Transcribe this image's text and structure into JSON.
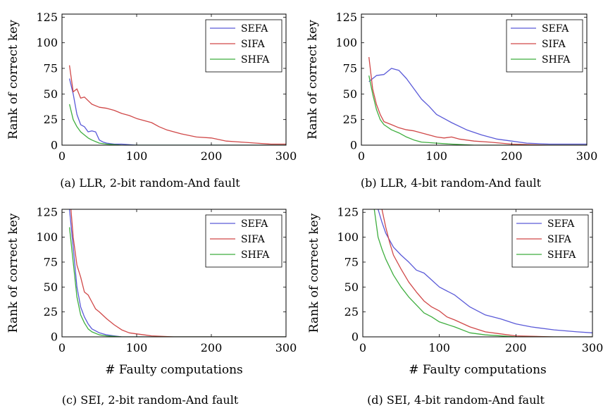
{
  "figure": {
    "colors": {
      "SEFA": "#5a5ad8",
      "SIFA": "#d04848",
      "SHFA": "#3fae3f"
    }
  },
  "chart_data": [
    {
      "type": "line",
      "caption": "(a) LLR, 2-bit random-And fault",
      "xlabel": "",
      "ylabel": "Rank of correct key",
      "xlim": [
        0,
        300
      ],
      "ylim": [
        0,
        128
      ],
      "xticks": [
        "0",
        "100",
        "200",
        "300"
      ],
      "yticks": [
        "0",
        "25",
        "50",
        "75",
        "100",
        "125"
      ],
      "legend": [
        "SEFA",
        "SIFA",
        "SHFA"
      ],
      "legend_position": "top-right",
      "series": [
        {
          "name": "SEFA",
          "x": [
            10,
            15,
            20,
            25,
            30,
            35,
            40,
            45,
            50,
            55,
            60,
            70,
            80,
            100,
            150,
            200,
            250,
            300
          ],
          "y": [
            65,
            50,
            30,
            20,
            18,
            13,
            14,
            13,
            5,
            3,
            2,
            1,
            1,
            0,
            0,
            0,
            0,
            0
          ]
        },
        {
          "name": "SIFA",
          "x": [
            10,
            15,
            20,
            25,
            30,
            40,
            50,
            60,
            70,
            80,
            90,
            100,
            110,
            120,
            130,
            140,
            160,
            180,
            200,
            220,
            240,
            260,
            280,
            300
          ],
          "y": [
            78,
            52,
            55,
            46,
            47,
            40,
            37,
            36,
            34,
            31,
            29,
            26,
            24,
            22,
            18,
            15,
            11,
            8,
            7,
            4,
            3,
            2,
            1,
            1
          ]
        },
        {
          "name": "SHFA",
          "x": [
            10,
            15,
            20,
            25,
            30,
            35,
            40,
            50,
            60,
            80,
            100,
            150,
            200,
            250,
            300
          ],
          "y": [
            40,
            25,
            18,
            13,
            10,
            7,
            5,
            2,
            1,
            0,
            0,
            0,
            0,
            0,
            0
          ]
        }
      ]
    },
    {
      "type": "line",
      "caption": "(b) LLR, 4-bit random-And fault",
      "xlabel": "",
      "ylabel": "Rank of correct key",
      "xlim": [
        0,
        300
      ],
      "ylim": [
        0,
        128
      ],
      "xticks": [
        "0",
        "100",
        "200",
        "300"
      ],
      "yticks": [
        "0",
        "25",
        "50",
        "75",
        "100",
        "125"
      ],
      "legend": [
        "SEFA",
        "SIFA",
        "SHFA"
      ],
      "legend_position": "top-right",
      "series": [
        {
          "name": "SEFA",
          "x": [
            10,
            20,
            30,
            40,
            50,
            60,
            70,
            80,
            90,
            100,
            120,
            140,
            160,
            180,
            200,
            220,
            250,
            300
          ],
          "y": [
            62,
            68,
            69,
            75,
            73,
            65,
            55,
            45,
            38,
            30,
            22,
            15,
            10,
            6,
            4,
            2,
            1,
            1
          ]
        },
        {
          "name": "SIFA",
          "x": [
            10,
            15,
            20,
            25,
            30,
            40,
            50,
            60,
            70,
            80,
            90,
            100,
            110,
            120,
            130,
            150,
            170,
            200,
            250,
            300
          ],
          "y": [
            86,
            55,
            40,
            30,
            23,
            20,
            17,
            15,
            14,
            12,
            10,
            8,
            7,
            8,
            6,
            4,
            3,
            1,
            0,
            0
          ]
        },
        {
          "name": "SHFA",
          "x": [
            10,
            15,
            20,
            25,
            30,
            40,
            50,
            60,
            70,
            80,
            100,
            120,
            150,
            200,
            250,
            300
          ],
          "y": [
            68,
            50,
            35,
            25,
            20,
            15,
            12,
            8,
            5,
            3,
            2,
            1,
            0,
            0,
            0,
            0
          ]
        }
      ]
    },
    {
      "type": "line",
      "caption": "(c) SEI, 2-bit random-And fault",
      "xlabel": "# Faulty computations",
      "ylabel": "Rank of correct key",
      "xlim": [
        0,
        300
      ],
      "ylim": [
        0,
        128
      ],
      "xticks": [
        "0",
        "100",
        "200",
        "300"
      ],
      "yticks": [
        "0",
        "25",
        "50",
        "75",
        "100",
        "125"
      ],
      "legend": [
        "SEFA",
        "SIFA",
        "SHFA"
      ],
      "legend_position": "top-right",
      "series": [
        {
          "name": "SEFA",
          "x": [
            10,
            15,
            20,
            25,
            30,
            35,
            40,
            50,
            60,
            70,
            80,
            100,
            150,
            200,
            300
          ],
          "y": [
            128,
            90,
            50,
            30,
            20,
            13,
            8,
            4,
            2,
            1,
            0,
            0,
            0,
            0,
            0
          ]
        },
        {
          "name": "SIFA",
          "x": [
            12,
            15,
            20,
            25,
            30,
            35,
            40,
            45,
            50,
            60,
            70,
            80,
            90,
            100,
            110,
            120,
            150,
            200,
            300
          ],
          "y": [
            128,
            100,
            72,
            60,
            45,
            42,
            35,
            28,
            25,
            18,
            12,
            7,
            4,
            3,
            2,
            1,
            0,
            0,
            0
          ]
        },
        {
          "name": "SHFA",
          "x": [
            10,
            15,
            20,
            25,
            30,
            35,
            40,
            50,
            60,
            80,
            100,
            150,
            200,
            300
          ],
          "y": [
            110,
            75,
            40,
            22,
            14,
            8,
            5,
            2,
            1,
            0,
            0,
            0,
            0,
            0
          ]
        }
      ]
    },
    {
      "type": "line",
      "caption": "(d) SEI, 4-bit random-And fault",
      "xlabel": "# Faulty computations",
      "ylabel": "Rank of correct key",
      "xlim": [
        0,
        300
      ],
      "ylim": [
        0,
        128
      ],
      "xticks": [
        "0",
        "100",
        "200",
        "300"
      ],
      "yticks": [
        "0",
        "25",
        "50",
        "75",
        "100",
        "125"
      ],
      "legend": [
        "SEFA",
        "SIFA",
        "SHFA"
      ],
      "legend_position": "top-right",
      "series": [
        {
          "name": "SEFA",
          "x": [
            20,
            25,
            30,
            40,
            50,
            60,
            70,
            80,
            90,
            100,
            120,
            140,
            160,
            180,
            200,
            220,
            250,
            280,
            300
          ],
          "y": [
            128,
            115,
            104,
            90,
            82,
            75,
            67,
            64,
            57,
            50,
            42,
            30,
            22,
            18,
            13,
            10,
            7,
            5,
            4
          ]
        },
        {
          "name": "SIFA",
          "x": [
            25,
            30,
            35,
            40,
            50,
            60,
            70,
            80,
            90,
            100,
            110,
            120,
            140,
            160,
            180,
            200,
            250,
            300
          ],
          "y": [
            128,
            110,
            95,
            82,
            68,
            55,
            45,
            36,
            30,
            26,
            20,
            17,
            10,
            5,
            3,
            1,
            0,
            0
          ]
        },
        {
          "name": "SHFA",
          "x": [
            15,
            20,
            25,
            30,
            40,
            50,
            60,
            70,
            80,
            90,
            100,
            120,
            140,
            160,
            200,
            250,
            300
          ],
          "y": [
            128,
            100,
            88,
            78,
            62,
            50,
            40,
            32,
            24,
            20,
            15,
            10,
            4,
            2,
            0,
            0,
            0
          ]
        }
      ]
    }
  ]
}
